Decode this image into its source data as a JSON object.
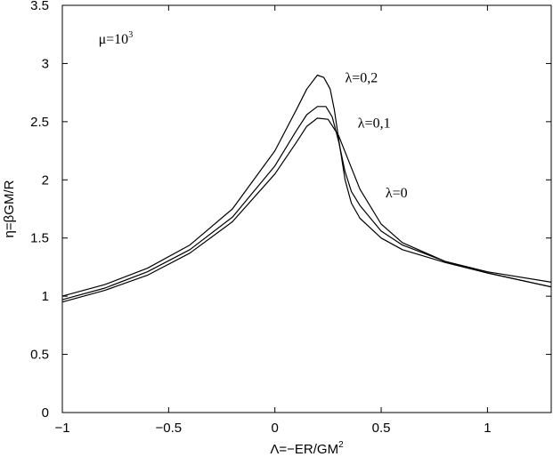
{
  "chart_data": {
    "type": "line",
    "title": "",
    "xlabel": "Λ=−ER/GM",
    "xlabel_sup": "2",
    "ylabel": "η=βGM/R",
    "xlim": [
      -1,
      1.3
    ],
    "ylim": [
      0,
      3.5
    ],
    "xticks": [
      {
        "value": -1,
        "label": "−1"
      },
      {
        "value": -0.5,
        "label": "−0.5"
      },
      {
        "value": 0,
        "label": "0"
      },
      {
        "value": 0.5,
        "label": "0.5"
      },
      {
        "value": 1,
        "label": "1"
      }
    ],
    "yticks": [
      {
        "value": 0,
        "label": "0"
      },
      {
        "value": 0.5,
        "label": "0.5"
      },
      {
        "value": 1,
        "label": "1"
      },
      {
        "value": 1.5,
        "label": "1.5"
      },
      {
        "value": 2,
        "label": "2"
      },
      {
        "value": 2.5,
        "label": "2.5"
      },
      {
        "value": 3,
        "label": "3"
      },
      {
        "value": 3.5,
        "label": "3.5"
      }
    ],
    "grid": false,
    "annotation": {
      "text": "μ=10",
      "sup": "3",
      "x": -0.83,
      "y": 3.17
    },
    "series": [
      {
        "name": "λ=0,2",
        "label_at": [
          0.33,
          2.84
        ],
        "x": [
          -1,
          -0.8,
          -0.6,
          -0.4,
          -0.2,
          0,
          0.1,
          0.15,
          0.2,
          0.23,
          0.26,
          0.28,
          0.3,
          0.33,
          0.36,
          0.4,
          0.5,
          0.6,
          0.8,
          1,
          1.3
        ],
        "y": [
          1.0,
          1.1,
          1.24,
          1.44,
          1.75,
          2.25,
          2.6,
          2.78,
          2.9,
          2.88,
          2.78,
          2.6,
          2.35,
          2.0,
          1.8,
          1.67,
          1.5,
          1.4,
          1.29,
          1.2,
          1.08
        ]
      },
      {
        "name": "λ=0,1",
        "label_at": [
          0.39,
          2.45
        ],
        "x": [
          -1,
          -0.8,
          -0.6,
          -0.4,
          -0.2,
          0,
          0.1,
          0.15,
          0.2,
          0.24,
          0.27,
          0.3,
          0.33,
          0.36,
          0.4,
          0.5,
          0.6,
          0.8,
          1,
          1.3
        ],
        "y": [
          0.97,
          1.07,
          1.21,
          1.4,
          1.68,
          2.12,
          2.42,
          2.56,
          2.63,
          2.63,
          2.54,
          2.33,
          2.07,
          1.9,
          1.78,
          1.56,
          1.44,
          1.3,
          1.2,
          1.08
        ]
      },
      {
        "name": "λ=0",
        "label_at": [
          0.52,
          1.85
        ],
        "x": [
          -1,
          -0.8,
          -0.6,
          -0.4,
          -0.2,
          0,
          0.1,
          0.15,
          0.2,
          0.25,
          0.3,
          0.35,
          0.4,
          0.5,
          0.6,
          0.8,
          1,
          1.3
        ],
        "y": [
          0.95,
          1.05,
          1.18,
          1.37,
          1.64,
          2.05,
          2.32,
          2.46,
          2.53,
          2.52,
          2.38,
          2.15,
          1.92,
          1.62,
          1.46,
          1.3,
          1.21,
          1.12
        ]
      }
    ]
  }
}
